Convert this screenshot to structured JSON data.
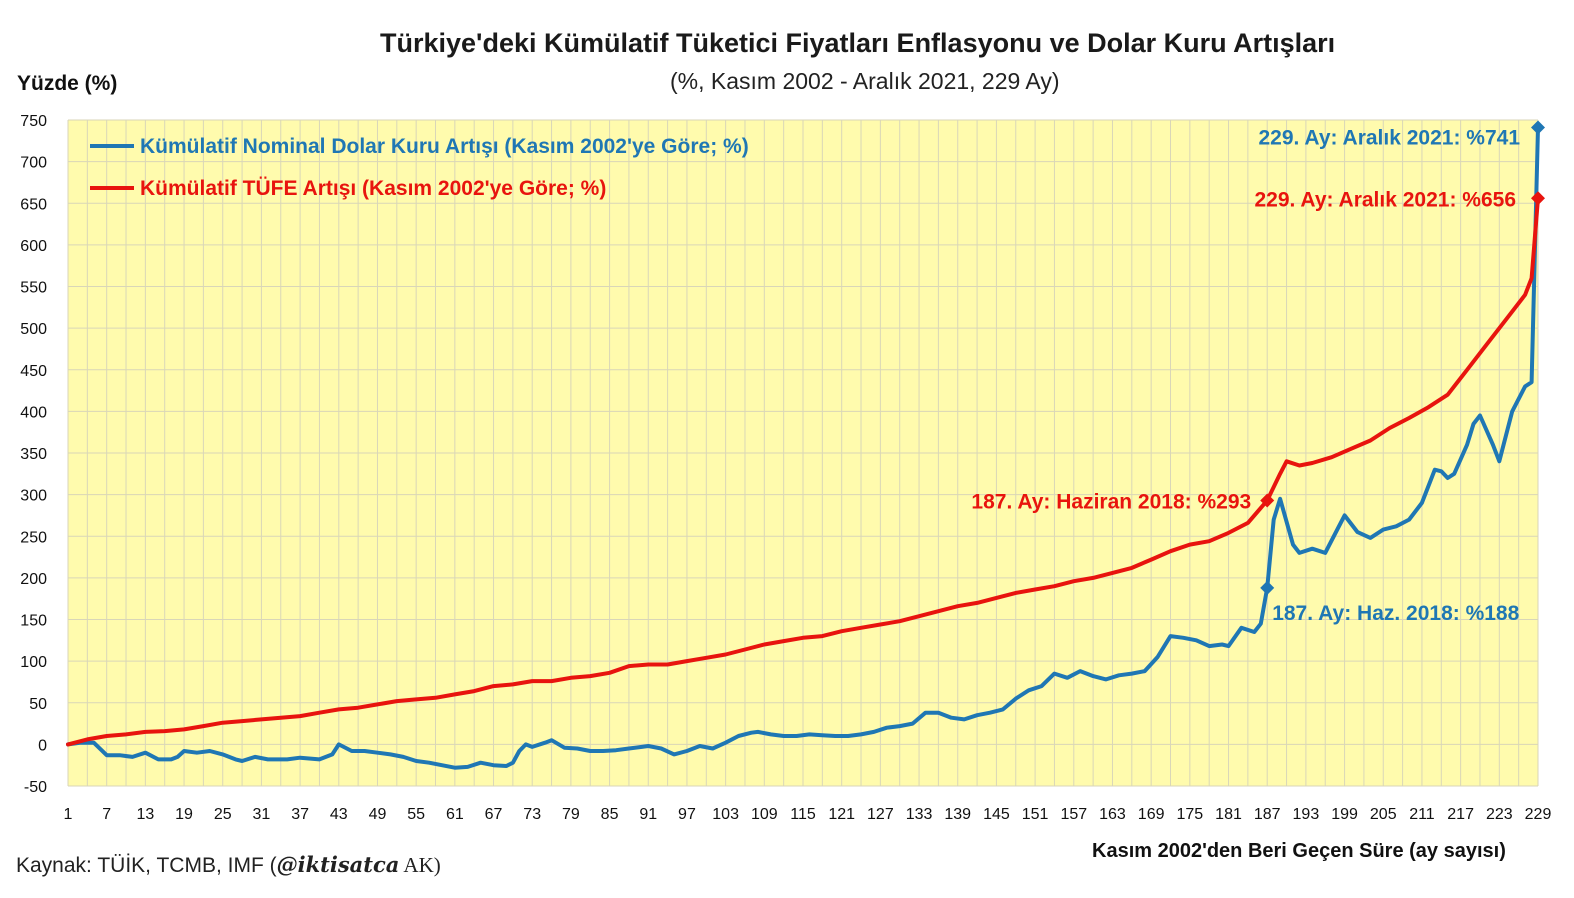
{
  "chart_data": {
    "type": "line",
    "title": "Türkiye'deki Kümülatif Tüketici Fiyatları Enflasyonu  ve Dolar Kuru Artışları",
    "subtitle": "(%, Kasım 2002 - Aralık 2021, 229 Ay)",
    "ylabel": "Yüzde (%)",
    "xlabel": "Kasım 2002'den Beri Geçen Süre (ay sayısı)",
    "source_prefix": "Kaynak: TÜİK, TCMB, IMF (",
    "source_handle": "@iktisatca",
    "source_suffix": " AK)",
    "xlim": [
      1,
      229
    ],
    "ylim": [
      -50,
      750
    ],
    "xticks": [
      1,
      7,
      13,
      19,
      25,
      31,
      37,
      43,
      49,
      55,
      61,
      67,
      73,
      79,
      85,
      91,
      97,
      103,
      109,
      115,
      121,
      127,
      133,
      139,
      145,
      151,
      157,
      163,
      169,
      175,
      181,
      187,
      193,
      199,
      205,
      211,
      217,
      223,
      229
    ],
    "yticks": [
      -50,
      0,
      50,
      100,
      150,
      200,
      250,
      300,
      350,
      400,
      450,
      500,
      550,
      600,
      650,
      700,
      750
    ],
    "grid": true,
    "background": "#FFFBAD",
    "series": [
      {
        "name": "Kümülatif Nominal Dolar Kuru Artışı (Kasım 2002'ye Göre; %)",
        "color": "#1F77B4",
        "points": [
          [
            1,
            0
          ],
          [
            3,
            2
          ],
          [
            5,
            2
          ],
          [
            7,
            -13
          ],
          [
            9,
            -13
          ],
          [
            11,
            -15
          ],
          [
            13,
            -10
          ],
          [
            15,
            -18
          ],
          [
            17,
            -18
          ],
          [
            18,
            -15
          ],
          [
            19,
            -8
          ],
          [
            21,
            -10
          ],
          [
            23,
            -8
          ],
          [
            25,
            -12
          ],
          [
            27,
            -18
          ],
          [
            28,
            -20
          ],
          [
            30,
            -15
          ],
          [
            32,
            -18
          ],
          [
            35,
            -18
          ],
          [
            37,
            -16
          ],
          [
            40,
            -18
          ],
          [
            42,
            -12
          ],
          [
            43,
            0
          ],
          [
            45,
            -8
          ],
          [
            47,
            -8
          ],
          [
            49,
            -10
          ],
          [
            51,
            -12
          ],
          [
            53,
            -15
          ],
          [
            55,
            -20
          ],
          [
            57,
            -22
          ],
          [
            59,
            -25
          ],
          [
            61,
            -28
          ],
          [
            63,
            -27
          ],
          [
            65,
            -22
          ],
          [
            67,
            -25
          ],
          [
            69,
            -26
          ],
          [
            70,
            -22
          ],
          [
            71,
            -8
          ],
          [
            72,
            0
          ],
          [
            73,
            -3
          ],
          [
            75,
            2
          ],
          [
            76,
            5
          ],
          [
            78,
            -4
          ],
          [
            80,
            -5
          ],
          [
            82,
            -8
          ],
          [
            84,
            -8
          ],
          [
            86,
            -7
          ],
          [
            88,
            -5
          ],
          [
            90,
            -3
          ],
          [
            91,
            -2
          ],
          [
            93,
            -5
          ],
          [
            95,
            -12
          ],
          [
            97,
            -8
          ],
          [
            99,
            -2
          ],
          [
            101,
            -5
          ],
          [
            103,
            2
          ],
          [
            105,
            10
          ],
          [
            107,
            14
          ],
          [
            108,
            15
          ],
          [
            110,
            12
          ],
          [
            112,
            10
          ],
          [
            114,
            10
          ],
          [
            116,
            12
          ],
          [
            118,
            11
          ],
          [
            120,
            10
          ],
          [
            122,
            10
          ],
          [
            124,
            12
          ],
          [
            126,
            15
          ],
          [
            128,
            20
          ],
          [
            130,
            22
          ],
          [
            132,
            25
          ],
          [
            134,
            38
          ],
          [
            136,
            38
          ],
          [
            138,
            32
          ],
          [
            140,
            30
          ],
          [
            142,
            35
          ],
          [
            144,
            38
          ],
          [
            146,
            42
          ],
          [
            148,
            55
          ],
          [
            150,
            65
          ],
          [
            152,
            70
          ],
          [
            154,
            85
          ],
          [
            156,
            80
          ],
          [
            158,
            88
          ],
          [
            160,
            82
          ],
          [
            162,
            78
          ],
          [
            164,
            83
          ],
          [
            166,
            85
          ],
          [
            168,
            88
          ],
          [
            170,
            105
          ],
          [
            172,
            130
          ],
          [
            174,
            128
          ],
          [
            176,
            125
          ],
          [
            178,
            118
          ],
          [
            180,
            120
          ],
          [
            181,
            118
          ],
          [
            183,
            140
          ],
          [
            185,
            135
          ],
          [
            186,
            145
          ],
          [
            187,
            188
          ],
          [
            188,
            270
          ],
          [
            189,
            295
          ],
          [
            191,
            240
          ],
          [
            192,
            230
          ],
          [
            194,
            235
          ],
          [
            196,
            230
          ],
          [
            198,
            260
          ],
          [
            199,
            275
          ],
          [
            201,
            255
          ],
          [
            203,
            248
          ],
          [
            205,
            258
          ],
          [
            207,
            262
          ],
          [
            209,
            270
          ],
          [
            211,
            290
          ],
          [
            213,
            330
          ],
          [
            214,
            328
          ],
          [
            215,
            320
          ],
          [
            216,
            325
          ],
          [
            218,
            360
          ],
          [
            219,
            385
          ],
          [
            220,
            395
          ],
          [
            222,
            360
          ],
          [
            223,
            340
          ],
          [
            225,
            400
          ],
          [
            227,
            430
          ],
          [
            228,
            435
          ],
          [
            229,
            741
          ]
        ]
      },
      {
        "name": "Kümülatif TÜFE Artışı (Kasım 2002'ye Göre; %)",
        "color": "#E8140E",
        "points": [
          [
            1,
            0
          ],
          [
            4,
            6
          ],
          [
            7,
            10
          ],
          [
            10,
            12
          ],
          [
            13,
            15
          ],
          [
            16,
            16
          ],
          [
            19,
            18
          ],
          [
            22,
            22
          ],
          [
            25,
            26
          ],
          [
            28,
            28
          ],
          [
            31,
            30
          ],
          [
            34,
            32
          ],
          [
            37,
            34
          ],
          [
            40,
            38
          ],
          [
            43,
            42
          ],
          [
            46,
            44
          ],
          [
            49,
            48
          ],
          [
            52,
            52
          ],
          [
            55,
            54
          ],
          [
            58,
            56
          ],
          [
            61,
            60
          ],
          [
            64,
            64
          ],
          [
            67,
            70
          ],
          [
            70,
            72
          ],
          [
            73,
            76
          ],
          [
            76,
            76
          ],
          [
            79,
            80
          ],
          [
            82,
            82
          ],
          [
            85,
            86
          ],
          [
            88,
            94
          ],
          [
            91,
            96
          ],
          [
            94,
            96
          ],
          [
            97,
            100
          ],
          [
            100,
            104
          ],
          [
            103,
            108
          ],
          [
            106,
            114
          ],
          [
            109,
            120
          ],
          [
            112,
            124
          ],
          [
            115,
            128
          ],
          [
            118,
            130
          ],
          [
            121,
            136
          ],
          [
            124,
            140
          ],
          [
            127,
            144
          ],
          [
            130,
            148
          ],
          [
            133,
            154
          ],
          [
            136,
            160
          ],
          [
            139,
            166
          ],
          [
            142,
            170
          ],
          [
            145,
            176
          ],
          [
            148,
            182
          ],
          [
            151,
            186
          ],
          [
            154,
            190
          ],
          [
            157,
            196
          ],
          [
            160,
            200
          ],
          [
            163,
            206
          ],
          [
            166,
            212
          ],
          [
            169,
            222
          ],
          [
            172,
            232
          ],
          [
            175,
            240
          ],
          [
            178,
            244
          ],
          [
            181,
            254
          ],
          [
            184,
            266
          ],
          [
            187,
            293
          ],
          [
            189,
            325
          ],
          [
            190,
            340
          ],
          [
            192,
            335
          ],
          [
            194,
            338
          ],
          [
            197,
            345
          ],
          [
            200,
            355
          ],
          [
            203,
            365
          ],
          [
            206,
            380
          ],
          [
            209,
            392
          ],
          [
            212,
            405
          ],
          [
            215,
            420
          ],
          [
            218,
            450
          ],
          [
            221,
            480
          ],
          [
            224,
            510
          ],
          [
            227,
            540
          ],
          [
            228,
            560
          ],
          [
            229,
            656
          ]
        ]
      }
    ],
    "annotations": [
      {
        "series": 0,
        "x": 229,
        "y": 741,
        "text": "229. Ay: Aralık 2021: %741",
        "color": "#1F77B4"
      },
      {
        "series": 1,
        "x": 229,
        "y": 656,
        "text": "229. Ay: Aralık 2021: %656",
        "color": "#E8140E"
      },
      {
        "series": 1,
        "x": 187,
        "y": 293,
        "text": "187. Ay: Haziran 2018: %293",
        "color": "#E8140E"
      },
      {
        "series": 0,
        "x": 187,
        "y": 188,
        "text": "187. Ay: Haz. 2018: %188",
        "color": "#1F77B4"
      }
    ]
  }
}
